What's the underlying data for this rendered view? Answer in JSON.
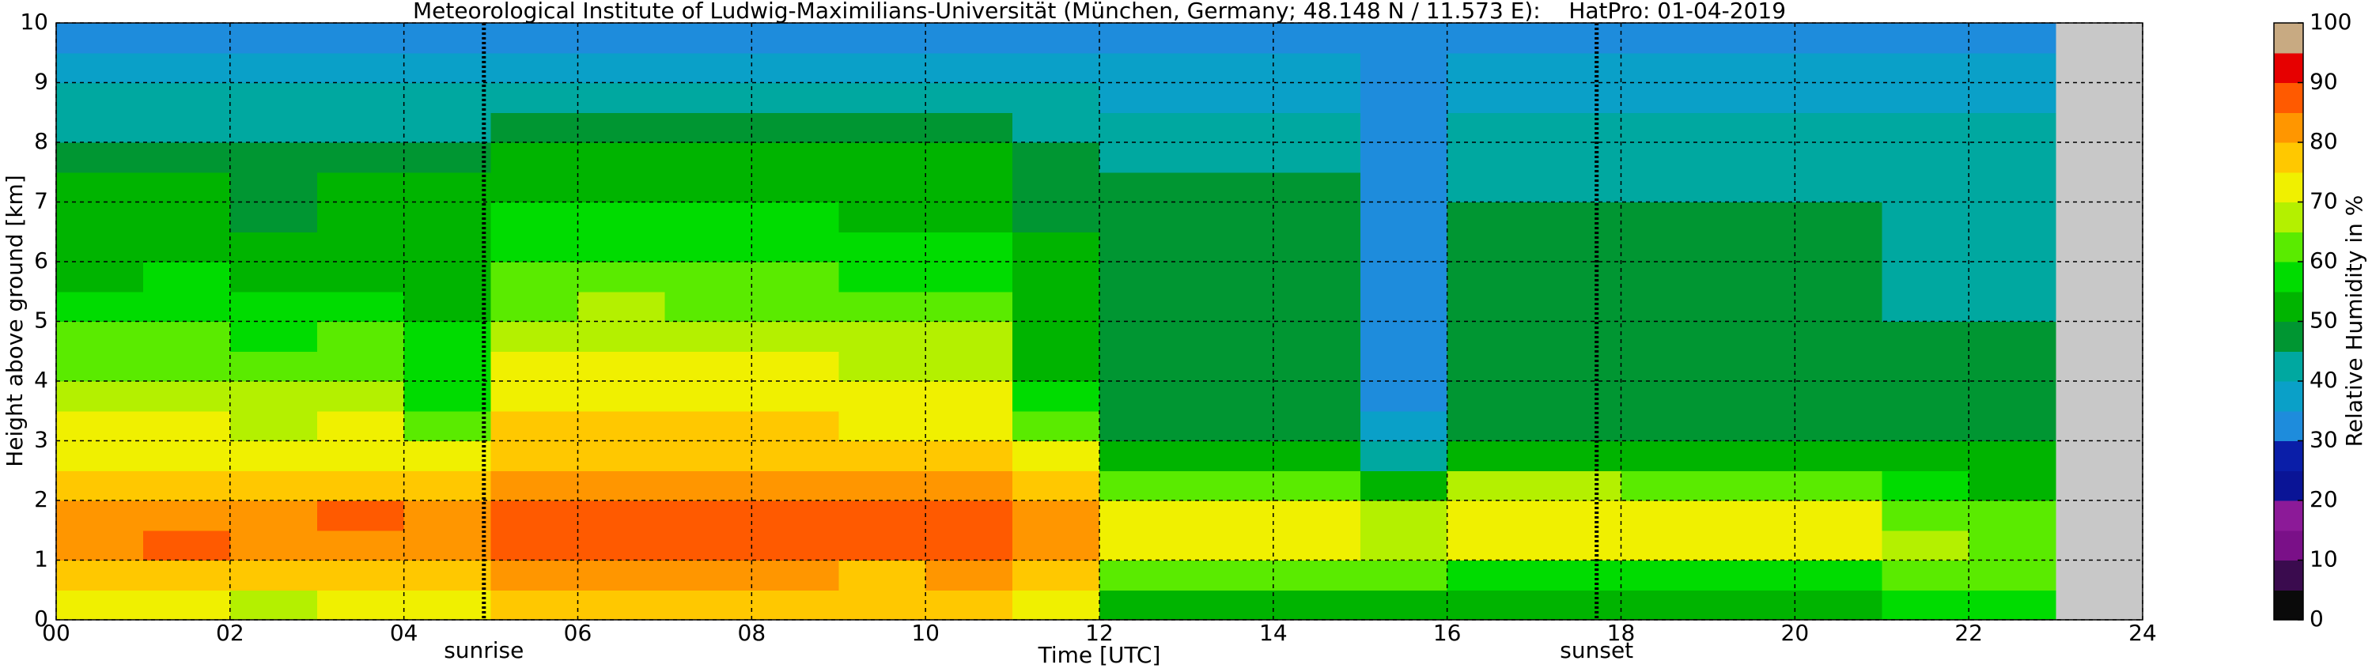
{
  "chart_data": {
    "type": "heatmap",
    "title": "Meteorological Institute of Ludwig-Maximilians-Universität (München, Germany; 48.148 N / 11.573 E):    HatPro: 01-04-2019",
    "x_label": "Time [UTC]",
    "y_label": "Height above ground [km]",
    "xlim": [
      0,
      24
    ],
    "ylim": [
      0,
      10
    ],
    "xticks": [
      {
        "value": 0,
        "label": "00"
      },
      {
        "value": 2,
        "label": "02"
      },
      {
        "value": 4,
        "label": "04"
      },
      {
        "value": 6,
        "label": "06"
      },
      {
        "value": 8,
        "label": "08"
      },
      10,
      12,
      14,
      16,
      18,
      20,
      22,
      24
    ],
    "yticks": [
      0,
      1,
      2,
      3,
      4,
      5,
      6,
      7,
      8,
      9,
      10
    ],
    "grid": true,
    "x_edges": [
      0,
      1,
      2,
      3,
      4,
      5,
      6,
      7,
      8,
      9,
      10,
      11,
      12,
      13,
      14,
      15,
      16,
      17,
      18,
      19,
      20,
      21,
      22,
      23
    ],
    "y_edges": [
      0,
      0.5,
      1,
      1.5,
      2,
      2.5,
      3,
      3.5,
      4,
      4.5,
      5,
      5.5,
      6,
      6.5,
      7,
      7.5,
      8,
      8.5,
      9,
      9.5,
      10
    ],
    "z": [
      [
        70,
        71,
        69,
        70,
        72,
        76,
        77,
        76,
        75,
        76,
        76,
        74,
        52,
        53,
        52,
        52,
        52,
        53,
        52,
        51,
        52,
        55,
        55
      ],
      [
        77,
        78,
        76,
        77,
        76,
        80,
        81,
        80,
        80,
        79,
        80,
        78,
        60,
        61,
        60,
        60,
        58,
        59,
        58,
        58,
        58,
        60,
        60
      ],
      [
        84,
        85,
        83,
        84,
        82,
        88,
        89,
        88,
        88,
        87,
        87,
        84,
        72,
        72,
        71,
        68,
        72,
        73,
        72,
        72,
        71,
        65,
        64
      ],
      [
        84,
        84,
        83,
        85,
        82,
        87,
        88,
        87,
        87,
        86,
        86,
        82,
        72,
        71,
        71,
        66,
        72,
        72,
        72,
        71,
        71,
        62,
        62
      ],
      [
        78,
        79,
        77,
        78,
        76,
        82,
        83,
        82,
        82,
        81,
        81,
        78,
        62,
        62,
        61,
        52,
        65,
        65,
        64,
        64,
        64,
        55,
        54
      ],
      [
        73,
        74,
        72,
        73,
        70,
        78,
        79,
        78,
        78,
        77,
        77,
        74,
        52,
        52,
        51,
        42,
        52,
        53,
        52,
        52,
        52,
        50,
        50
      ],
      [
        70,
        70,
        69,
        70,
        62,
        75,
        76,
        75,
        75,
        74,
        74,
        62,
        48,
        48,
        48,
        35,
        48,
        48,
        48,
        48,
        48,
        46,
        46
      ],
      [
        67,
        67,
        66,
        67,
        58,
        73,
        74,
        73,
        73,
        72,
        72,
        56,
        48,
        48,
        47,
        32,
        48,
        48,
        48,
        47,
        48,
        45,
        45
      ],
      [
        63,
        64,
        62,
        63,
        55,
        70,
        71,
        70,
        70,
        69,
        69,
        54,
        48,
        48,
        47,
        30,
        48,
        48,
        48,
        47,
        48,
        45,
        45
      ],
      [
        60,
        61,
        59,
        60,
        55,
        68,
        69,
        68,
        68,
        67,
        67,
        53,
        48,
        48,
        47,
        30,
        48,
        48,
        48,
        47,
        48,
        45,
        45
      ],
      [
        56,
        57,
        55,
        56,
        52,
        64,
        65,
        64,
        64,
        63,
        63,
        52,
        48,
        48,
        47,
        30,
        48,
        48,
        48,
        47,
        48,
        44,
        44
      ],
      [
        54,
        55,
        53,
        54,
        52,
        60,
        61,
        60,
        60,
        59,
        59,
        52,
        47,
        47,
        47,
        30,
        48,
        48,
        48,
        47,
        48,
        44,
        44
      ],
      [
        52,
        52,
        51,
        52,
        50,
        57,
        58,
        57,
        57,
        56,
        56,
        50,
        47,
        47,
        46,
        30,
        46,
        46,
        46,
        46,
        46,
        43,
        43
      ],
      [
        50,
        50,
        49,
        50,
        50,
        55,
        56,
        55,
        55,
        54,
        54,
        48,
        46,
        46,
        46,
        30,
        45,
        45,
        45,
        45,
        45,
        43,
        43
      ],
      [
        50,
        50,
        49,
        50,
        50,
        53,
        54,
        53,
        53,
        52,
        52,
        47,
        45,
        45,
        45,
        30,
        43,
        43,
        43,
        43,
        43,
        42,
        42
      ],
      [
        48,
        48,
        47,
        48,
        48,
        50,
        51,
        50,
        50,
        50,
        50,
        45,
        43,
        43,
        43,
        30,
        42,
        42,
        42,
        42,
        42,
        41,
        41
      ],
      [
        44,
        44,
        43,
        44,
        44,
        45,
        46,
        45,
        45,
        45,
        45,
        42,
        40,
        40,
        40,
        30,
        40,
        40,
        40,
        40,
        40,
        40,
        40
      ],
      [
        40,
        40,
        40,
        40,
        40,
        41,
        41,
        41,
        41,
        41,
        41,
        40,
        38,
        38,
        38,
        30,
        38,
        38,
        38,
        38,
        38,
        38,
        38
      ],
      [
        37,
        37,
        37,
        37,
        37,
        38,
        38,
        38,
        38,
        38,
        38,
        37,
        36,
        36,
        36,
        30,
        36,
        36,
        36,
        36,
        36,
        36,
        36
      ],
      [
        32,
        32,
        32,
        32,
        32,
        32,
        32,
        32,
        32,
        32,
        32,
        32,
        32,
        32,
        32,
        30,
        32,
        32,
        32,
        32,
        32,
        32,
        32
      ]
    ],
    "annotations": [
      {
        "text": "sunrise",
        "x": 4.92
      },
      {
        "text": "sunset",
        "x": 17.72
      }
    ],
    "colorbar": {
      "label": "Relative Humidity in %",
      "lim": [
        0,
        100
      ],
      "ticks": [
        0,
        10,
        20,
        30,
        40,
        50,
        60,
        70,
        80,
        90,
        100
      ],
      "colors": [
        "#0a0a0a",
        "#3a0b4e",
        "#7a1088",
        "#8c1a98",
        "#0a1496",
        "#0a1ea8",
        "#1e8cdc",
        "#0aa0c8",
        "#00a8a0",
        "#009632",
        "#00b400",
        "#00dc00",
        "#5aeb00",
        "#b4f000",
        "#f0f000",
        "#ffc800",
        "#ff9600",
        "#ff5a00",
        "#e60000",
        "#c8aa82"
      ]
    }
  }
}
